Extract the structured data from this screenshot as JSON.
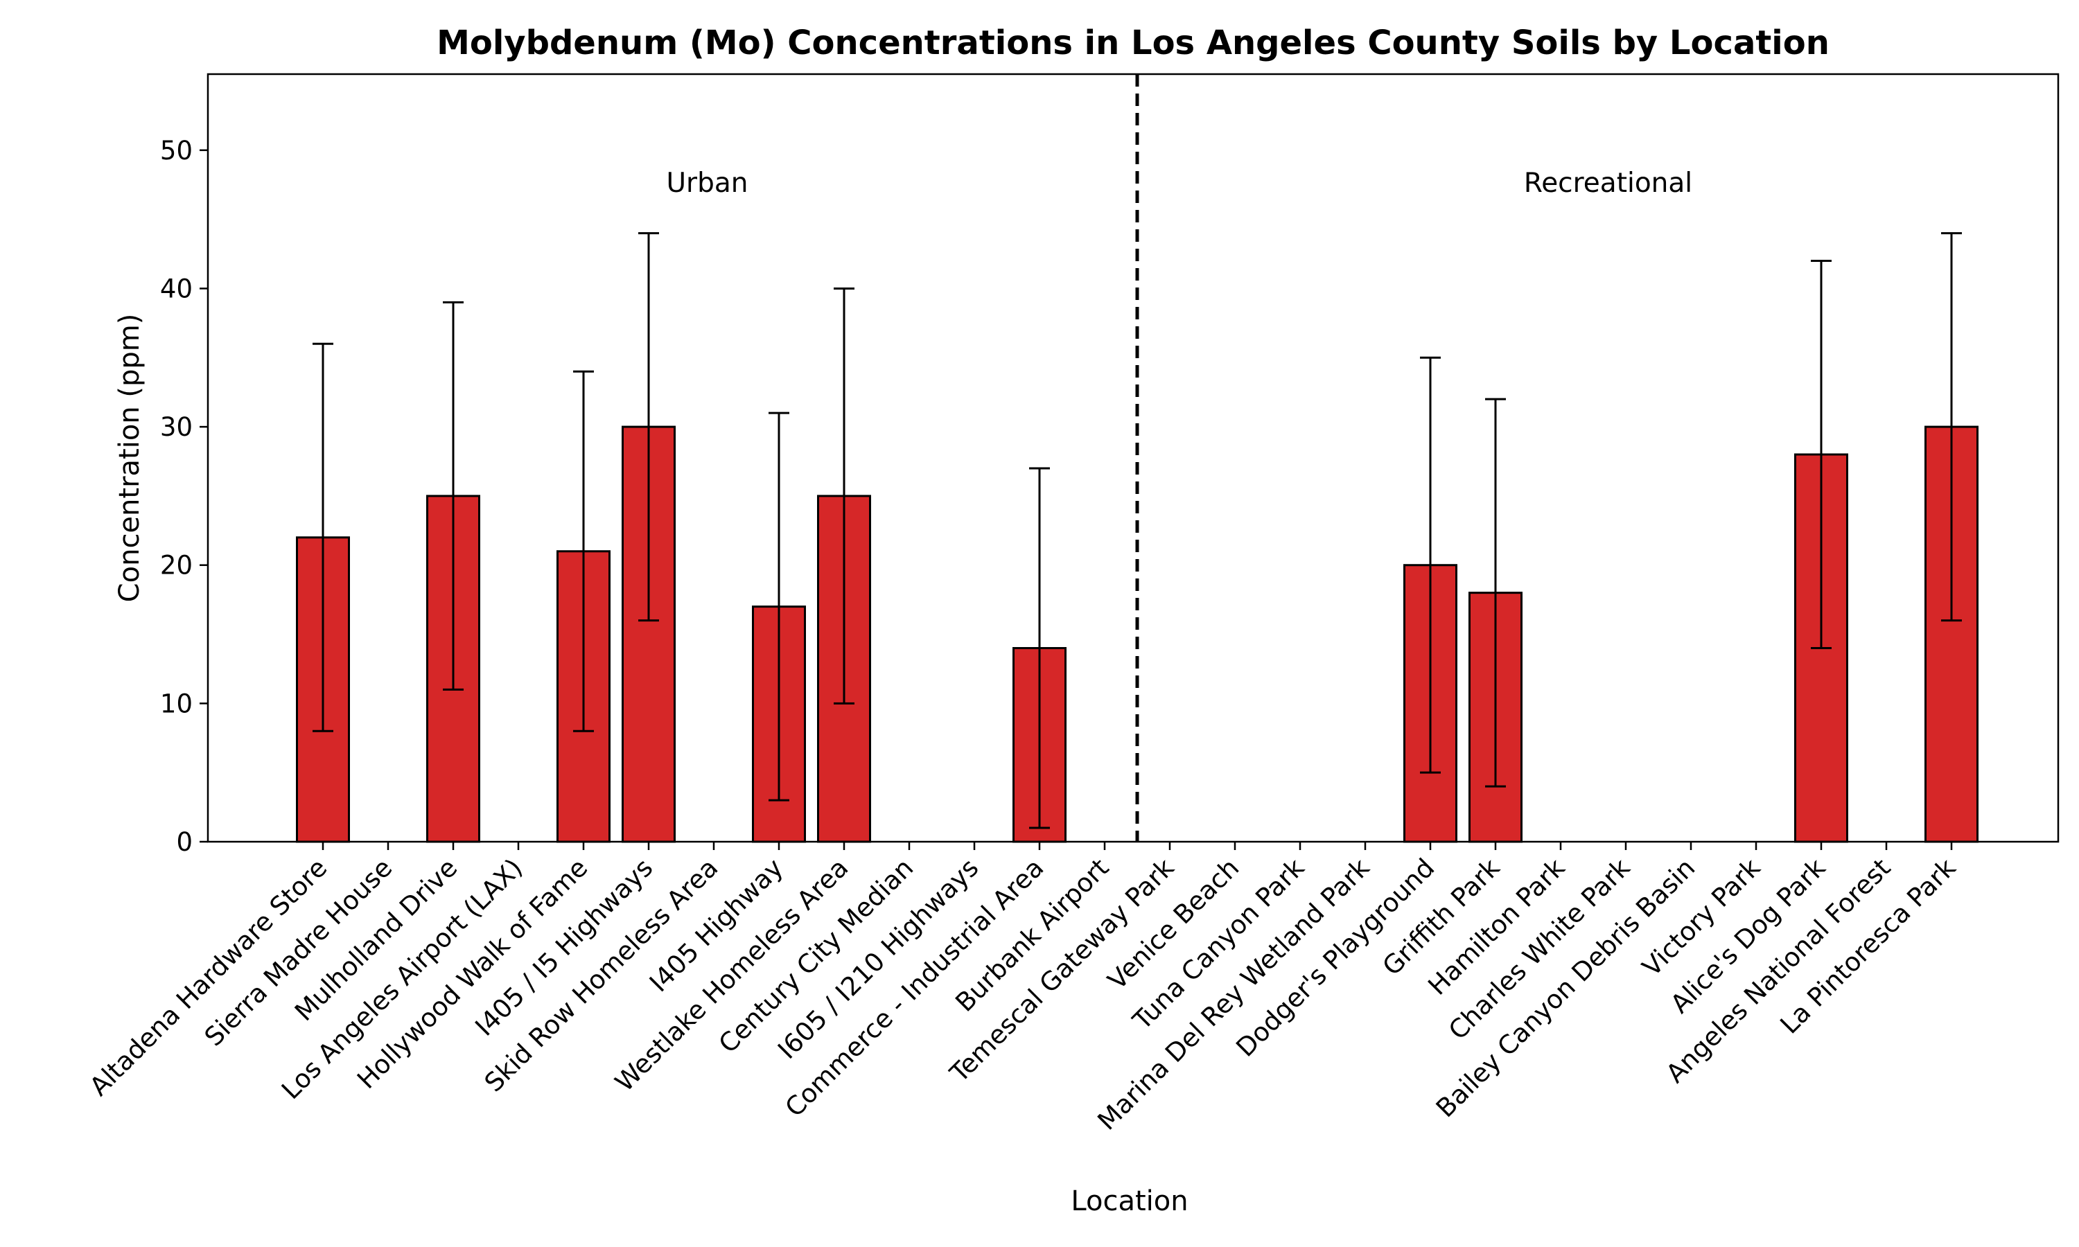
{
  "chart_data": {
    "type": "bar",
    "title": "Molybdenum (Mo) Concentrations in Los Angeles County Soils by Location",
    "xlabel": "Location",
    "ylabel": "Concentration (ppm)",
    "ylim": [
      0,
      55.5
    ],
    "yticks": [
      0,
      10,
      20,
      30,
      40,
      50
    ],
    "grid": false,
    "bar_color": "#d62728",
    "edge_color": "#000000",
    "categories": [
      "Altadena Hardware Store",
      "Sierra Madre House",
      "Mulholland Drive",
      "Los Angeles Airport (LAX)",
      "Hollywood Walk of Fame",
      "I405 / I5 Highways",
      "Skid Row Homeless Area",
      "I405 Highway",
      "Westlake Homeless Area",
      "Century City Median",
      "I605 / I210 Highways",
      "Commerce - Industrial Area",
      "Burbank Airport",
      "Temescal Gateway Park",
      "Venice Beach",
      "Tuna Canyon Park",
      "Marina Del Rey Wetland Park",
      "Dodger's Playground",
      "Griffith Park",
      "Hamilton Park",
      "Charles White Park",
      "Bailey Canyon Debris Basin",
      "Victory Park",
      "Alice's Dog Park",
      "Angeles National Forest",
      "La Pintoresca Park"
    ],
    "values": [
      22,
      0,
      25,
      0,
      21,
      30,
      0,
      17,
      25,
      0,
      0,
      14,
      0,
      0,
      0,
      0,
      0,
      20,
      18,
      0,
      0,
      0,
      0,
      28,
      0,
      30
    ],
    "errors": [
      14,
      0,
      14,
      0,
      13,
      14,
      0,
      14,
      15,
      0,
      0,
      13,
      0,
      0,
      0,
      0,
      0,
      15,
      14,
      0,
      0,
      0,
      0,
      14,
      0,
      14
    ],
    "divider_after_index": 12,
    "groups": [
      {
        "label": "Urban"
      },
      {
        "label": "Recreational"
      }
    ]
  }
}
